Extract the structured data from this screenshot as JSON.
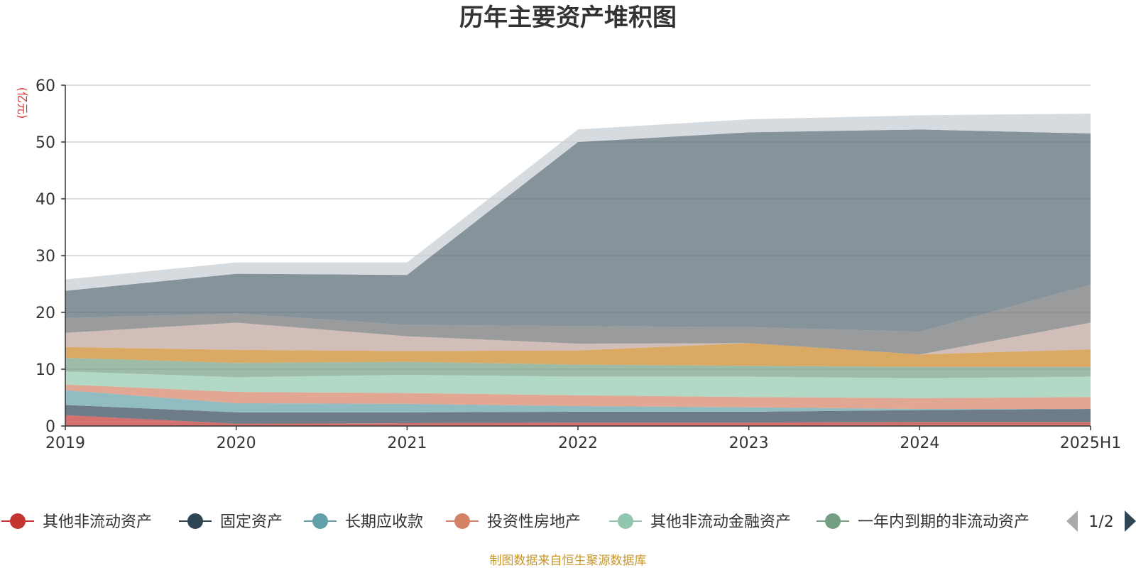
{
  "chart_data": {
    "type": "area",
    "stacked": true,
    "title": "历年主要资产堆积图",
    "ylabel": "(亿元)",
    "categories": [
      "2019",
      "2020",
      "2021",
      "2022",
      "2023",
      "2024",
      "2025H1"
    ],
    "ylim": [
      0,
      60
    ],
    "yticks": [
      0,
      10,
      20,
      30,
      40,
      50,
      60
    ],
    "grid": true,
    "series": [
      {
        "name": "其他非流动资产",
        "color": "#c23531",
        "values": [
          1.9,
          0.4,
          0.5,
          0.6,
          0.6,
          0.7,
          0.7
        ]
      },
      {
        "name": "固定资产",
        "color": "#2f4554",
        "values": [
          1.8,
          2.0,
          1.9,
          1.9,
          1.9,
          2.1,
          2.3
        ]
      },
      {
        "name": "长期应收款",
        "color": "#61a0a8",
        "values": [
          2.6,
          1.6,
          1.5,
          1.0,
          0.8,
          0.2,
          0.0
        ]
      },
      {
        "name": "投资性房地产",
        "color": "#d48265",
        "values": [
          1.0,
          2.0,
          1.9,
          1.9,
          1.8,
          1.9,
          2.1
        ]
      },
      {
        "name": "其他非流动金融资产",
        "color": "#91c7ae",
        "values": [
          2.3,
          2.6,
          3.2,
          3.3,
          3.6,
          3.5,
          3.6
        ]
      },
      {
        "name": "一年内到期的非流动资产",
        "color": "#749f83",
        "values": [
          2.4,
          2.5,
          2.3,
          2.1,
          1.9,
          2.0,
          1.7
        ]
      },
      {
        "name": "",
        "color": "#ca8622",
        "values": [
          1.9,
          2.3,
          1.9,
          2.5,
          4.0,
          2.2,
          3.1
        ]
      },
      {
        "name": "",
        "color": "#bda29a",
        "values": [
          2.5,
          4.8,
          2.6,
          1.2,
          0.0,
          0.0,
          4.7
        ]
      },
      {
        "name": "",
        "color": "#6e7074",
        "values": [
          2.6,
          1.6,
          2.0,
          3.1,
          2.8,
          4.0,
          6.7
        ]
      },
      {
        "name": "",
        "color": "#546570",
        "values": [
          4.8,
          7.0,
          8.8,
          32.4,
          34.3,
          35.6,
          26.6
        ]
      },
      {
        "name": "",
        "color": "#c4ccd3",
        "values": [
          2.0,
          2.0,
          2.2,
          2.2,
          2.3,
          2.5,
          3.5
        ]
      }
    ],
    "legend": {
      "position": "bottom",
      "visible_count": 6,
      "page": "1/2"
    }
  },
  "footer": {
    "source": "制图数据来自恒生聚源数据库"
  }
}
